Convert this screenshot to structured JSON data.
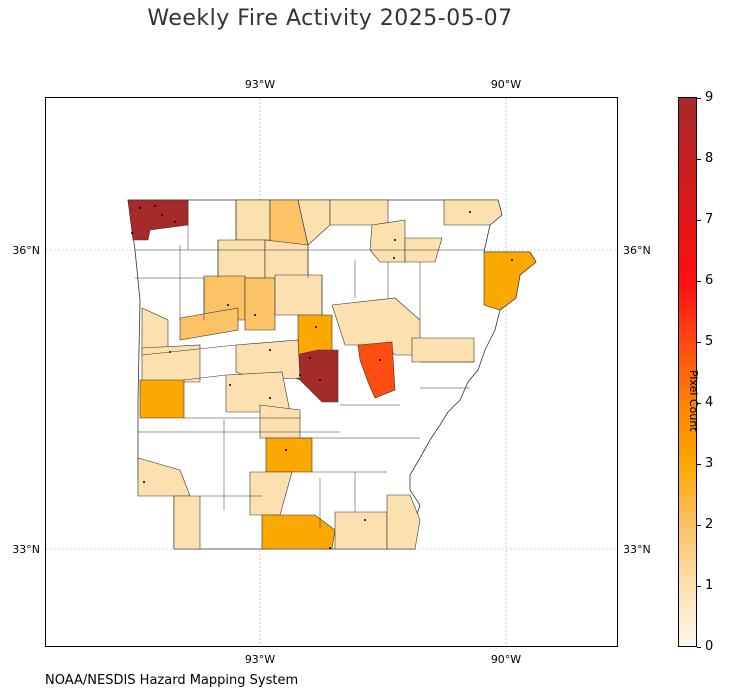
{
  "title": "Weekly Fire Activity 2025-05-07",
  "source": "NOAA/NESDIS Hazard Mapping System",
  "map": {
    "longitude_labels": [
      "93°W",
      "90°W"
    ],
    "latitude_labels": [
      "36°N",
      "33°N"
    ]
  },
  "colorbar": {
    "label": "Pixel Count",
    "ticks": [
      "9",
      "8",
      "7",
      "6",
      "5",
      "4",
      "3",
      "2",
      "1",
      "0"
    ],
    "min": 0,
    "max": 9,
    "colors": [
      "#fff8ee",
      "#fde0b0",
      "#fbc266",
      "#fba800",
      "#fd8400",
      "#fe4d10",
      "#ff1010",
      "#e41616",
      "#c71e1e",
      "#a52a2a"
    ]
  }
}
